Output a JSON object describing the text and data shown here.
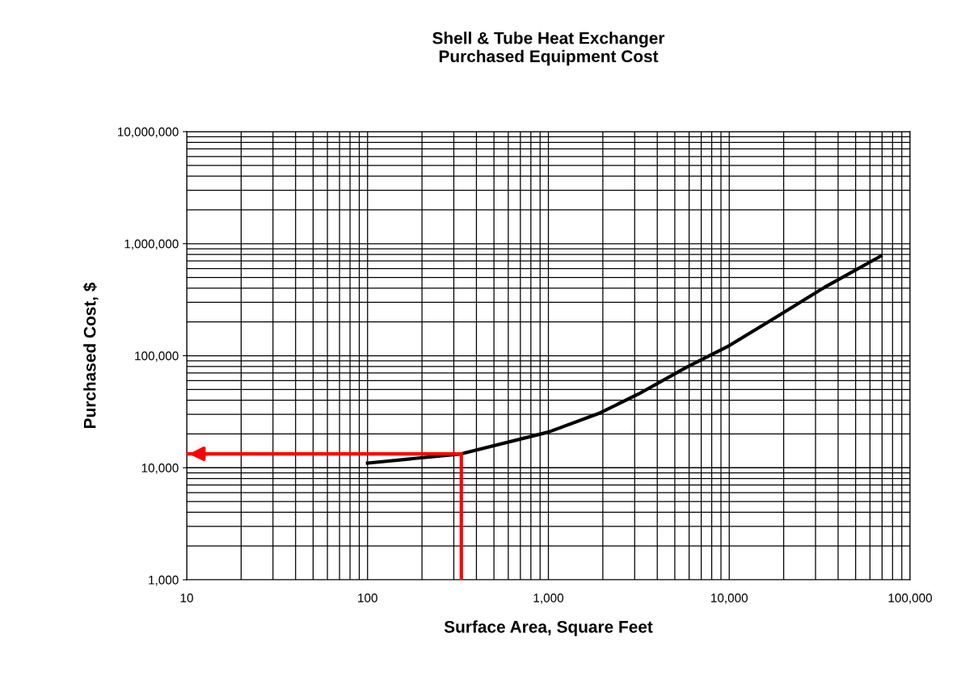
{
  "chart_data": {
    "type": "line",
    "title": "Shell & Tube Heat Exchanger\nPurchased Equipment Cost",
    "xlabel": "Surface Area, Square Feet",
    "ylabel": "Purchased Cost, $",
    "log": "xy",
    "grid": true,
    "legend": false,
    "xlim": [
      10,
      100000
    ],
    "ylim": [
      1000,
      10000000
    ],
    "xticks": [
      {
        "value": 10,
        "label": "10"
      },
      {
        "value": 100,
        "label": "100"
      },
      {
        "value": 1000,
        "label": "1,000"
      },
      {
        "value": 10000,
        "label": "10,000"
      },
      {
        "value": 100000,
        "label": "100,000"
      }
    ],
    "yticks": [
      {
        "value": 1000,
        "label": "1,000"
      },
      {
        "value": 10000,
        "label": "10,000"
      },
      {
        "value": 100000,
        "label": "100,000"
      },
      {
        "value": 1000000,
        "label": "1,000,000"
      },
      {
        "value": 10000000,
        "label": "10,000,000"
      }
    ],
    "series": [
      {
        "color": "#000000",
        "x": [
          100,
          330,
          1000,
          1900,
          3150,
          5800,
          10000,
          18100,
          33600,
          69000
        ],
        "values": [
          11000,
          13300,
          20800,
          30500,
          45500,
          78700,
          123000,
          220000,
          407000,
          776000
        ]
      },
      {
        "color": "#ff0000",
        "x": [
          330,
          330,
          10
        ],
        "values": [
          1000,
          13300,
          13300
        ]
      }
    ]
  }
}
